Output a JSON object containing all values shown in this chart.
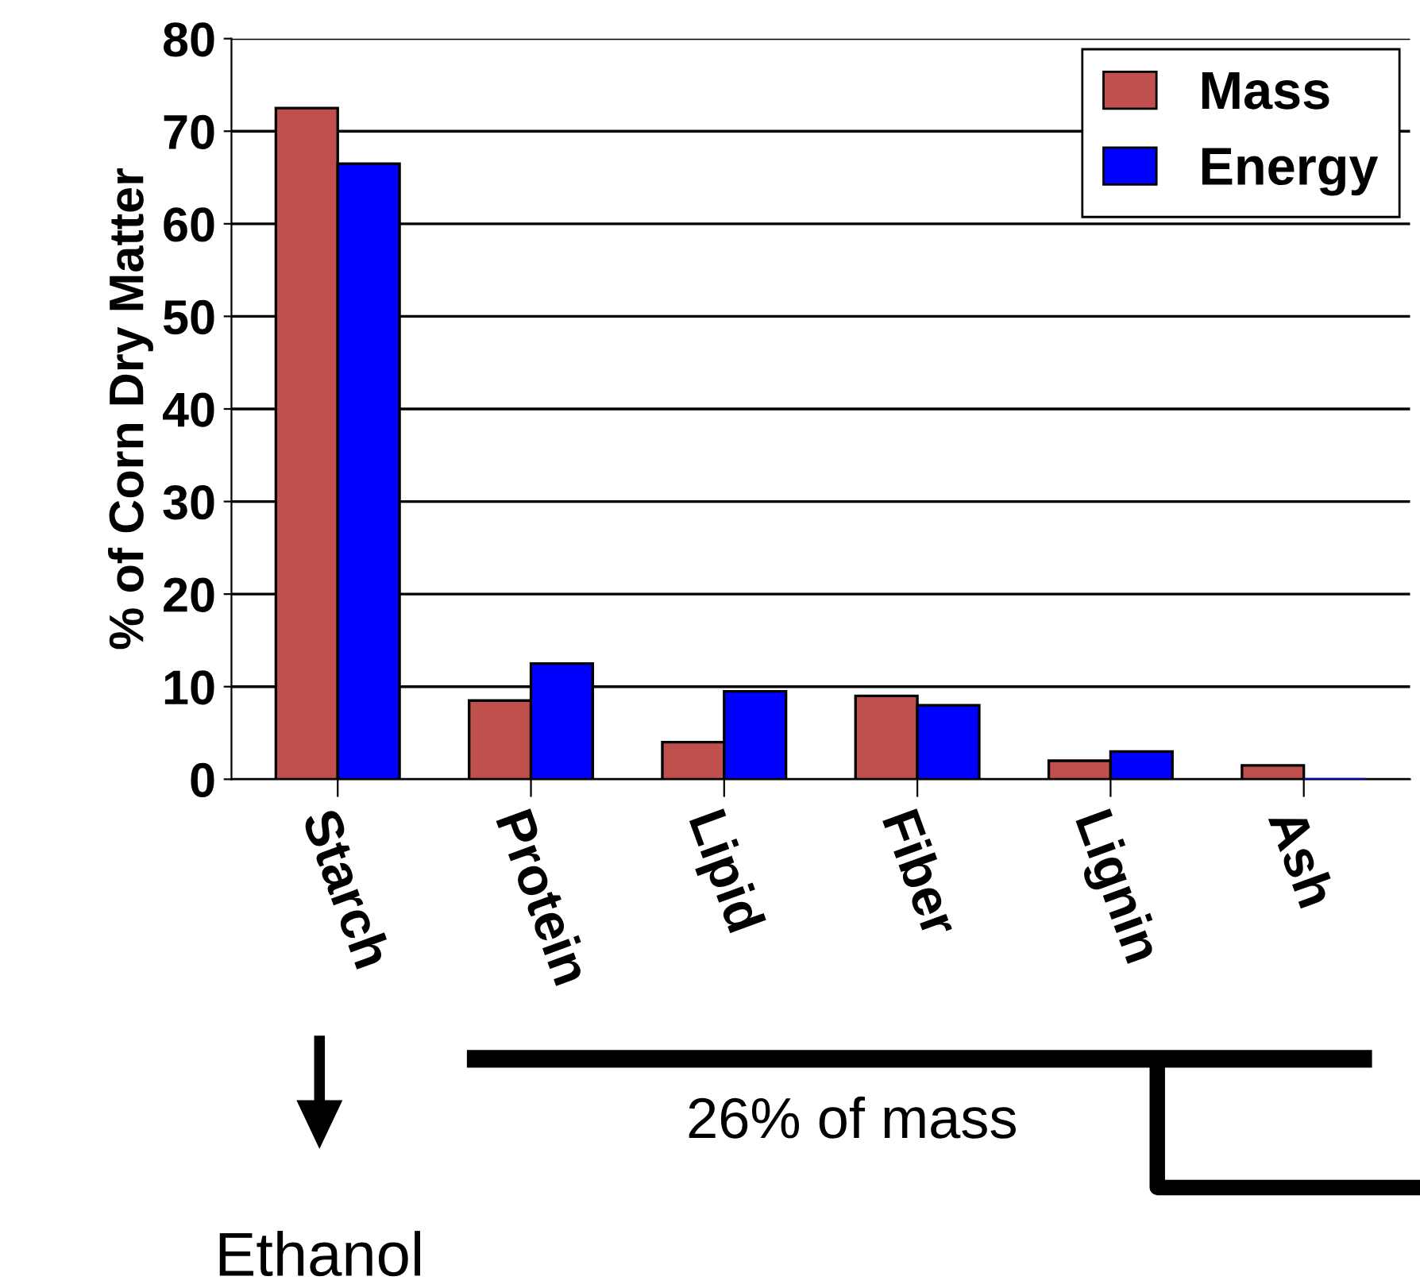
{
  "chart_data": {
    "type": "bar",
    "ylabel": "% of Corn Dry Matter",
    "categories": [
      "Starch",
      "Protein",
      "Lipid",
      "Fiber",
      "Lignin",
      "Ash"
    ],
    "series": [
      {
        "name": "Mass",
        "color": "#c0504d",
        "values": [
          72.5,
          8.5,
          4,
          9,
          2,
          1.5
        ]
      },
      {
        "name": "Energy",
        "color": "#0000ff",
        "values": [
          66.5,
          12.5,
          9.5,
          8,
          3,
          0
        ]
      }
    ],
    "ylim": [
      0,
      80
    ],
    "yticks": [
      0,
      10,
      20,
      30,
      40,
      50,
      60,
      70,
      80
    ],
    "grid": "y",
    "legend": "top right",
    "annotations": [
      "26% of mass",
      "Ethanol"
    ]
  }
}
